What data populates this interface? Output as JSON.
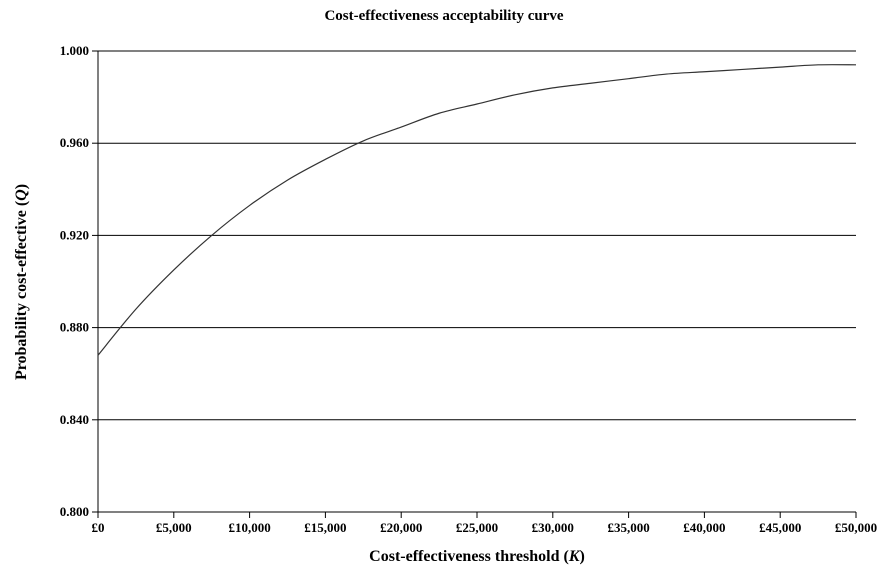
{
  "chart_data": {
    "type": "line",
    "title": "Cost-effectiveness acceptability curve",
    "xlabel_prefix": "Cost-effectiveness threshold (",
    "xlabel_var": "K",
    "xlabel_suffix": ")",
    "ylabel_prefix": "Probability cost-effective (",
    "ylabel_var": "Q",
    "ylabel_suffix": ")",
    "xlim": [
      0,
      50000
    ],
    "ylim": [
      0.8,
      1.0
    ],
    "x_ticks": [
      0,
      5000,
      10000,
      15000,
      20000,
      25000,
      30000,
      35000,
      40000,
      45000,
      50000
    ],
    "x_tick_labels": [
      "£0",
      "£5,000",
      "£10,000",
      "£15,000",
      "£20,000",
      "£25,000",
      "£30,000",
      "£35,000",
      "£40,000",
      "£45,000",
      "£50,000"
    ],
    "y_ticks": [
      0.8,
      0.84,
      0.88,
      0.92,
      0.96,
      1.0
    ],
    "y_tick_labels": [
      "0.800",
      "0.840",
      "0.880",
      "0.920",
      "0.960",
      "1.000"
    ],
    "grid": "horizontal",
    "line_color": "#333333",
    "series": [
      {
        "x": [
          0,
          2500,
          5000,
          7500,
          10000,
          12500,
          15000,
          17500,
          20000,
          22500,
          25000,
          27500,
          30000,
          32500,
          35000,
          37500,
          40000,
          42500,
          45000,
          47500,
          50000
        ],
        "values": [
          0.868,
          0.888,
          0.905,
          0.92,
          0.933,
          0.944,
          0.953,
          0.961,
          0.967,
          0.973,
          0.977,
          0.981,
          0.984,
          0.986,
          0.988,
          0.99,
          0.991,
          0.992,
          0.993,
          0.994,
          0.994
        ]
      }
    ]
  }
}
